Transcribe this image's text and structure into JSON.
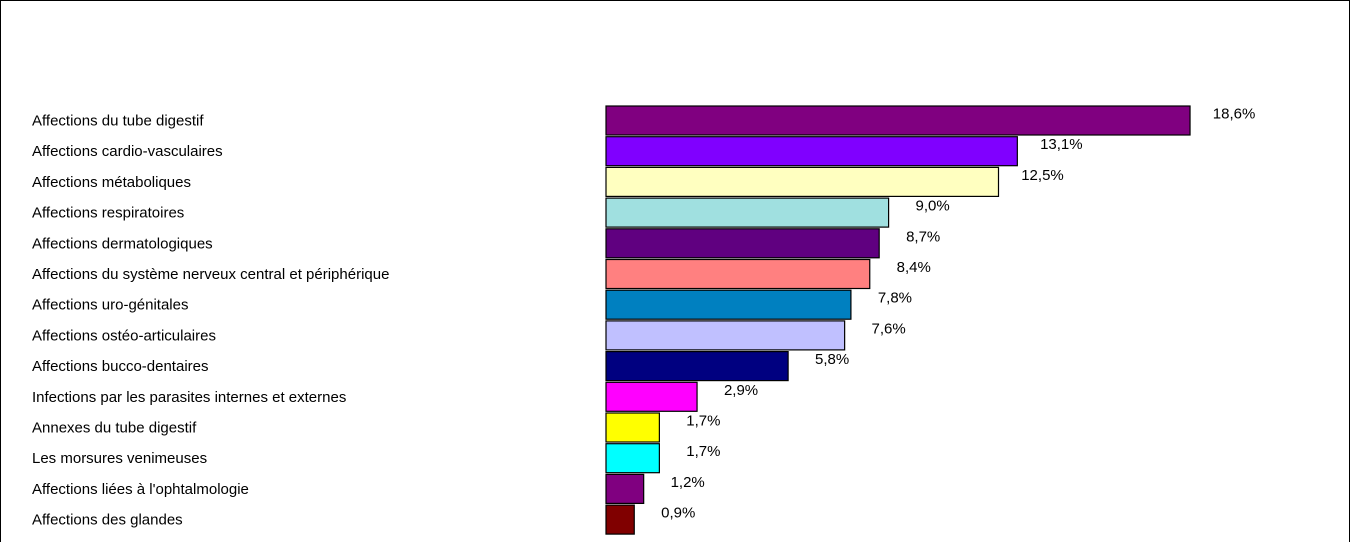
{
  "chart_data": {
    "type": "bar",
    "orientation": "horizontal",
    "categories": [
      "Affections du tube digestif",
      "Affections cardio-vasculaires",
      "Affections métaboliques",
      "Affections respiratoires",
      "Affections dermatologiques",
      "Affections du système nerveux central et périphérique",
      "Affections uro-génitales",
      "Affections ostéo-articulaires",
      "Affections bucco-dentaires",
      "Infections par les parasites internes et externes",
      "Annexes du tube digestif",
      "Les morsures venimeuses",
      "Affections liées à l'ophtalmologie",
      "Affections des glandes"
    ],
    "values": [
      18.6,
      13.1,
      12.5,
      9.0,
      8.7,
      8.4,
      7.8,
      7.6,
      5.8,
      2.9,
      1.7,
      1.7,
      1.2,
      0.9
    ],
    "value_labels": [
      "18,6%",
      "13,1%",
      "12,5%",
      "9,0%",
      "8,7%",
      "8,4%",
      "7,8%",
      "7,6%",
      "5,8%",
      "2,9%",
      "1,7%",
      "1,7%",
      "1,2%",
      "0,9%"
    ],
    "colors": [
      "#800080",
      "#8000ff",
      "#ffffc0",
      "#a0e0e0",
      "#600080",
      "#ff8080",
      "#0080c0",
      "#c0c0ff",
      "#000080",
      "#ff00ff",
      "#ffff00",
      "#00ffff",
      "#800080",
      "#800000"
    ],
    "value_unit": "%",
    "grid": false,
    "legend": "none"
  }
}
